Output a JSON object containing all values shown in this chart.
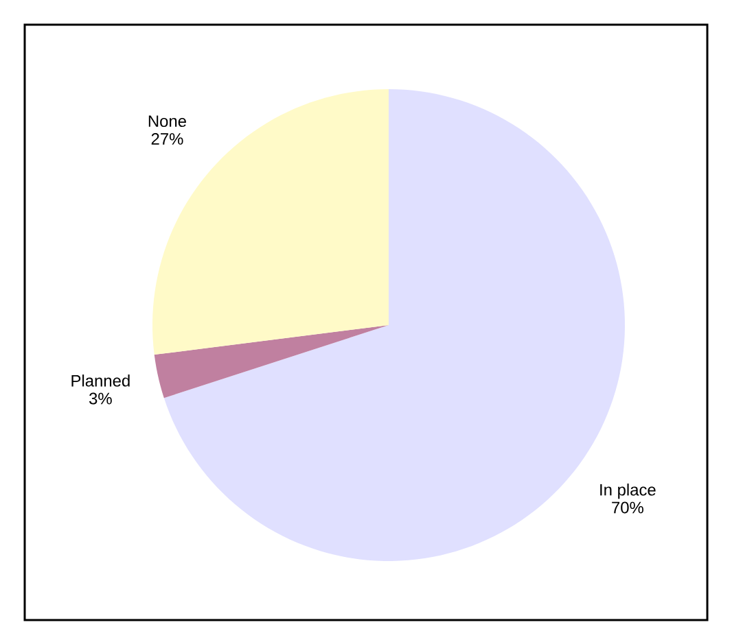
{
  "chart_data": {
    "type": "pie",
    "categories": [
      "In place",
      "Planned",
      "None"
    ],
    "values": [
      70,
      3,
      27
    ],
    "value_labels": [
      "70%",
      "3%",
      "27%"
    ],
    "colors": [
      "#e0e0ff",
      "#c080a0",
      "#fffac8"
    ]
  }
}
